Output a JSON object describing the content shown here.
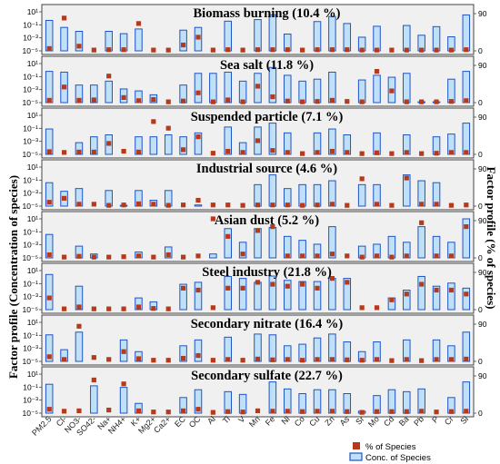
{
  "chart_data": {
    "type": "bar",
    "ylabel_left": "Factor profile (Concentration of species)",
    "ylabel_right": "Factor profile (% of species)",
    "categories": [
      "PM2.5",
      "Cl-",
      "NO3-",
      "SO42-",
      "Na+",
      "NH4+",
      "K+",
      "Mg2+",
      "Ca2+",
      "EC",
      "OC",
      "Al",
      "Ti",
      "V",
      "Mn",
      "Fe",
      "Ni",
      "Co",
      "Cu",
      "Zn",
      "As",
      "Sr",
      "Mo",
      "Cd",
      "Ba",
      "Pb",
      "P",
      "Cr",
      "Si"
    ],
    "left_axis": {
      "scale": "log",
      "tick_labels": [
        "10¹",
        "10⁻¹",
        "10⁻³",
        "10⁻⁵"
      ]
    },
    "right_axis": {
      "range": [
        0,
        90
      ],
      "tick_labels": [
        "90",
        "0"
      ]
    },
    "legend": {
      "position": "bottom-right",
      "items": [
        "% of Species",
        "Conc. of Species"
      ]
    },
    "colors": {
      "bar_fill": "#bfe0f6",
      "bar_stroke": "#1f54c8",
      "marker": "#b53a1c",
      "panel_bg": "#f0f0f0"
    },
    "panels": [
      {
        "title": "Biomass burning (10.4 %)",
        "conc": [
          0.78,
          0.6,
          0.5,
          0,
          0.5,
          0.44,
          0.56,
          0,
          0,
          0.53,
          0.6,
          0,
          0.76,
          0,
          0.8,
          0.92,
          0.43,
          0,
          0.75,
          0.88,
          0.7,
          0.35,
          0.63,
          0,
          0.65,
          0.4,
          0.62,
          0.36,
          0.92
        ],
        "pct": [
          0.06,
          0.84,
          0.12,
          0.02,
          0.03,
          0.03,
          0.7,
          0.02,
          0.02,
          0.15,
          0.35,
          0.02,
          0.03,
          0.02,
          0.03,
          0.03,
          0.03,
          0.02,
          0.03,
          0.03,
          0.03,
          0.02,
          0.02,
          0.02,
          0.02,
          0.02,
          0.02,
          0.02,
          0.03
        ]
      },
      {
        "title": "Sea salt (11.8 %)",
        "conc": [
          0.8,
          0.78,
          0.45,
          0.45,
          0.55,
          0.35,
          0.3,
          0.2,
          0,
          0.45,
          0.75,
          0.75,
          0.78,
          0.55,
          0.75,
          0.9,
          0.7,
          0.55,
          0.6,
          0.78,
          0,
          0.58,
          0.7,
          0.65,
          0.75,
          0.02,
          0.02,
          0.6,
          0.8
        ],
        "pct": [
          0.06,
          0.4,
          0.06,
          0.07,
          0.68,
          0.13,
          0.05,
          0.08,
          0.02,
          0.04,
          0.25,
          0.02,
          0.07,
          0.02,
          0.42,
          0.15,
          0.04,
          0.02,
          0.03,
          0.06,
          0.03,
          0.02,
          0.8,
          0.3,
          0.02,
          0.02,
          0.02,
          0.03,
          0.05
        ]
      },
      {
        "title": "Suspended particle (7.1 %)",
        "conc": [
          0.65,
          0,
          0.3,
          0.45,
          0.5,
          0,
          0.45,
          0.45,
          0.5,
          0.45,
          0.55,
          0,
          0.7,
          0.3,
          0.7,
          0.8,
          0.55,
          0,
          0.55,
          0.65,
          0.5,
          0,
          0.55,
          0,
          0.5,
          0,
          0.45,
          0.52,
          0.8
        ],
        "pct": [
          0.07,
          0.05,
          0.06,
          0.06,
          0.28,
          0.08,
          0.06,
          0.84,
          0.67,
          0.12,
          0.45,
          0.03,
          0.08,
          0.05,
          0.35,
          0.1,
          0.05,
          0.02,
          0.05,
          0.08,
          0.05,
          0.02,
          0.04,
          0.02,
          0.05,
          0.02,
          0.03,
          0.05,
          0.05
        ]
      },
      {
        "title": "Industrial source (4.6 %)",
        "conc": [
          0.6,
          0.38,
          0.45,
          0,
          0.4,
          0.02,
          0.4,
          0.15,
          0.4,
          0,
          0.03,
          0,
          0,
          0,
          0.55,
          0.8,
          0.45,
          0.55,
          0.55,
          0.65,
          0,
          0.55,
          0.55,
          0,
          0.8,
          0.65,
          0.6,
          0,
          0
        ],
        "pct": [
          0.1,
          0.2,
          0.05,
          0.05,
          0.02,
          0.03,
          0.06,
          0.05,
          0.02,
          0.03,
          0.15,
          0.03,
          0.03,
          0.02,
          0.03,
          0.03,
          0.03,
          0.02,
          0.03,
          0.05,
          0.02,
          0.7,
          0.05,
          0.02,
          0.72,
          0.05,
          0.05,
          0.02,
          0.03
        ]
      },
      {
        "title": "Asian dust (5.2 %)",
        "conc": [
          0.6,
          0,
          0.3,
          0.1,
          0,
          0,
          0.15,
          0,
          0.28,
          0,
          0,
          0.1,
          0.75,
          0.4,
          0.75,
          0.78,
          0.55,
          0.45,
          0.35,
          0.8,
          0,
          0.3,
          0.35,
          0.55,
          0.4,
          0.8,
          0.55,
          0.4,
          1.0
        ],
        "pct": [
          0.08,
          0.02,
          0.04,
          0.02,
          0.02,
          0.03,
          0.05,
          0.02,
          0.08,
          0.02,
          0.05,
          1.0,
          0.55,
          0.1,
          0.7,
          0.8,
          0.05,
          0.05,
          0.05,
          0.1,
          0.05,
          0.02,
          0.05,
          0.02,
          0.05,
          0.9,
          0.05,
          0.05,
          0.8
        ]
      },
      {
        "title": "Steel industry (21.8 %)",
        "conc": [
          0.9,
          0,
          0.6,
          0,
          0,
          0,
          0.3,
          0.2,
          0,
          0.65,
          0.7,
          0,
          0.85,
          0.8,
          0.7,
          0.86,
          0.75,
          0.72,
          0.72,
          0.8,
          0.8,
          0,
          0,
          0.3,
          0.5,
          0.85,
          0.6,
          0.68,
          0.55
        ],
        "pct": [
          0.3,
          0.02,
          0.07,
          0.02,
          0.02,
          0.02,
          0.07,
          0.03,
          0.02,
          0.55,
          0.5,
          0.05,
          0.55,
          0.55,
          0.7,
          0.65,
          0.6,
          0.65,
          0.55,
          0.8,
          0.7,
          0.05,
          0.05,
          0.25,
          0.4,
          0.65,
          0.5,
          0.5,
          0.4
        ]
      },
      {
        "title": "Secondary nitrate (16.4 %)",
        "conc": [
          0.68,
          0.3,
          0.75,
          0,
          0,
          0.55,
          0.25,
          0,
          0,
          0.4,
          0.55,
          0,
          0.62,
          0,
          0.7,
          0.68,
          0.4,
          0.44,
          0.6,
          0.7,
          0.5,
          0.25,
          0.5,
          0,
          0.55,
          0,
          0.55,
          0.4,
          0.75
        ],
        "pct": [
          0.12,
          0.05,
          0.9,
          0.1,
          0.05,
          0.25,
          0.07,
          0.03,
          0.03,
          0.08,
          0.15,
          0.03,
          0.05,
          0.03,
          0.06,
          0.04,
          0.05,
          0.03,
          0.05,
          0.05,
          0.04,
          0.03,
          0.05,
          0.02,
          0.05,
          0.02,
          0.05,
          0.05,
          0.06
        ]
      },
      {
        "title": "Secondary sulfate (22.7 %)",
        "conc": [
          0.74,
          0,
          0,
          0.7,
          0,
          0.66,
          0.25,
          0,
          0,
          0.4,
          0.6,
          0,
          0.55,
          0.48,
          0,
          0.8,
          0.62,
          0.5,
          0.6,
          0.6,
          0.5,
          0.05,
          0.45,
          0.6,
          0.55,
          0.62,
          0,
          0.4,
          0.8
        ],
        "pct": [
          0.1,
          0.05,
          0.06,
          0.85,
          0.08,
          0.75,
          0.06,
          0.03,
          0.03,
          0.06,
          0.1,
          0.02,
          0.04,
          0.03,
          0.06,
          0.05,
          0.05,
          0.04,
          0.05,
          0.05,
          0.04,
          0.02,
          0.04,
          0.04,
          0.04,
          0.05,
          0.03,
          0.04,
          0.05
        ]
      }
    ]
  }
}
